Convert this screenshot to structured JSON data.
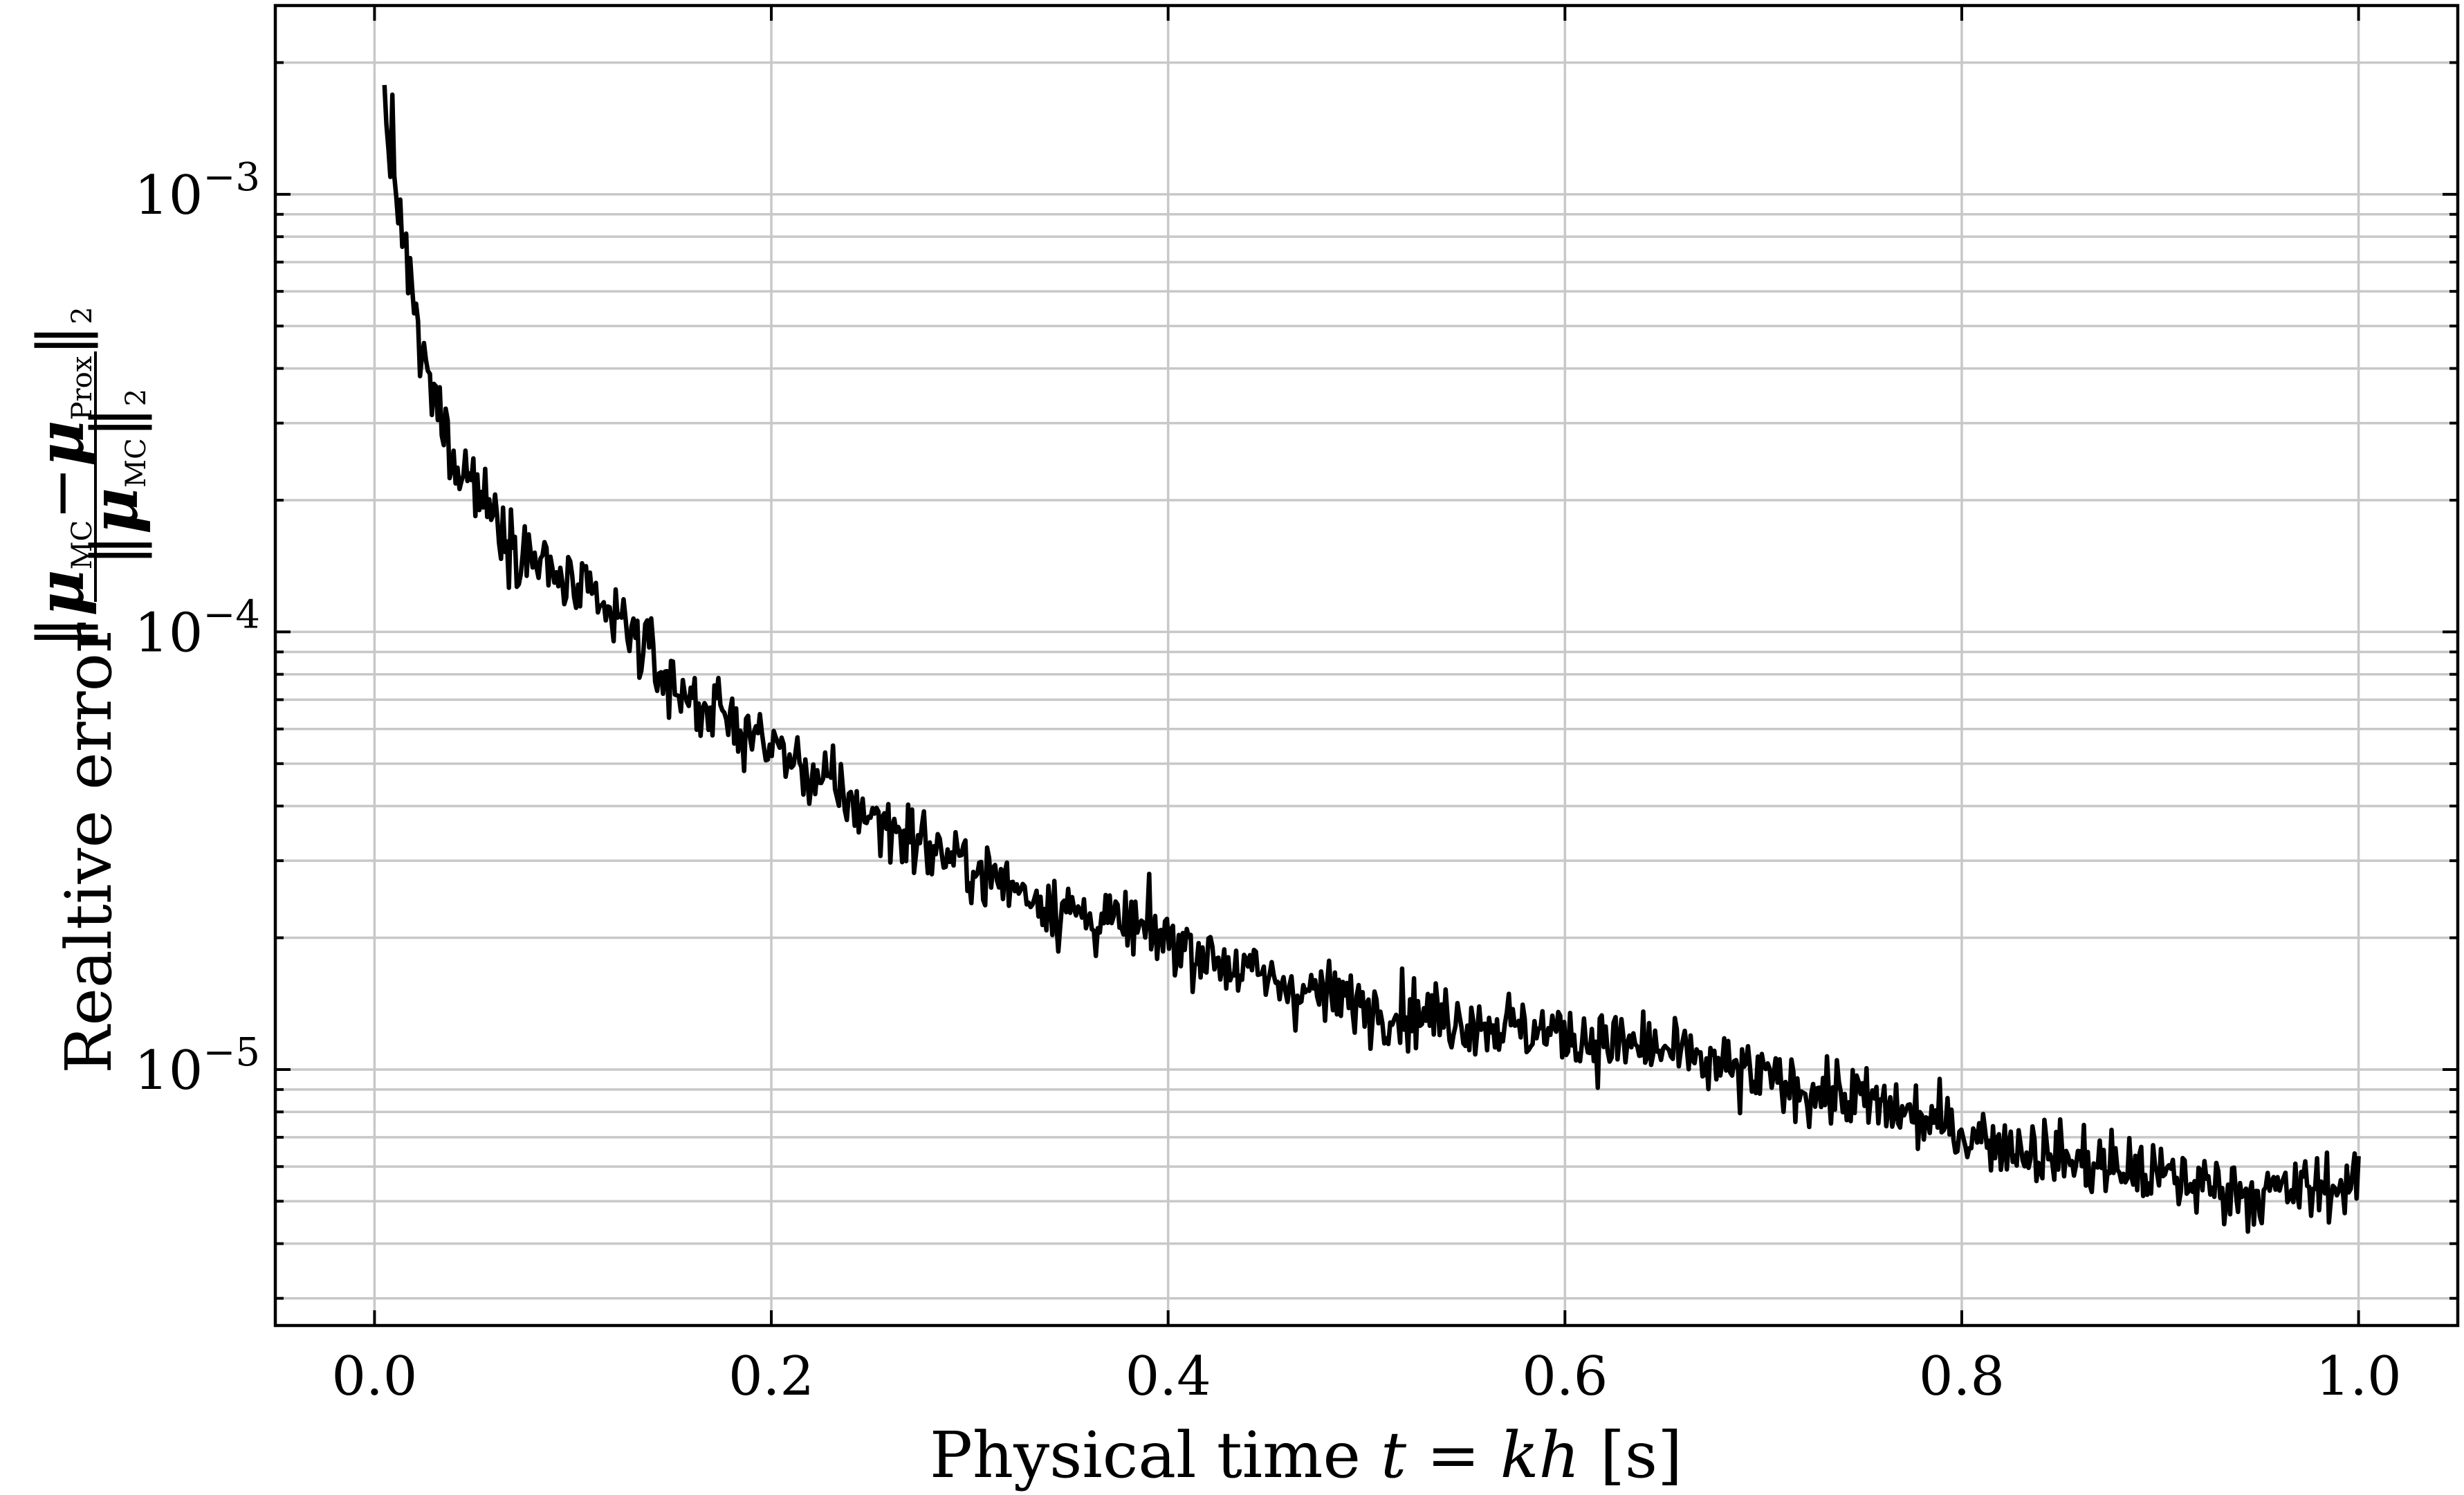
{
  "chart_data": {
    "type": "line",
    "xlabel": "Physical time t = kh [s]",
    "ylabel": "Realtive error ‖μ_MC − μ_Prox‖₂ / ‖μ_MC‖₂",
    "ylabel_parts": {
      "prefix": "Realtive error",
      "num_mu1": "μ",
      "num_sub1": "MC",
      "num_minus": "−",
      "num_mu2": "μ",
      "num_sub2": "Prox",
      "num_norm_sub": "2",
      "den_mu": "μ",
      "den_sub": "MC",
      "den_norm_sub": "2"
    },
    "xlabel_parts": {
      "text": "Physical time ",
      "t": "t",
      "eq": " = ",
      "kh": "kh",
      "unit": " [s]"
    },
    "xlim": [
      -0.05,
      1.05
    ],
    "ylim": [
      2.6e-06,
      0.0027
    ],
    "yscale": "log",
    "grid": true,
    "x_ticks": [
      0.0,
      0.2,
      0.4,
      0.6,
      0.8,
      1.0
    ],
    "x_tick_labels": [
      "0.0",
      "0.2",
      "0.4",
      "0.6",
      "0.8",
      "1.0"
    ],
    "y_major_ticks": [
      0.001,
      0.0001,
      1e-05
    ],
    "y_tick_labels": [
      {
        "base": "10",
        "exp": "−3"
      },
      {
        "base": "10",
        "exp": "−4"
      },
      {
        "base": "10",
        "exp": "−5"
      }
    ],
    "series": [
      {
        "color": "#000000",
        "t_start": 0.005,
        "t_end": 1.0,
        "trend_points": [
          [
            0.005,
            0.0016
          ],
          [
            0.01,
            0.0011
          ],
          [
            0.015,
            0.00075
          ],
          [
            0.02,
            0.00052
          ],
          [
            0.03,
            0.00033
          ],
          [
            0.04,
            0.00026
          ],
          [
            0.05,
            0.00022
          ],
          [
            0.07,
            0.00016
          ],
          [
            0.1,
            0.000125
          ],
          [
            0.13,
            0.0001
          ],
          [
            0.15,
            7.5e-05
          ],
          [
            0.2,
            5.5e-05
          ],
          [
            0.25,
            3.8e-05
          ],
          [
            0.3,
            2.9e-05
          ],
          [
            0.35,
            2.3e-05
          ],
          [
            0.4,
            2e-05
          ],
          [
            0.45,
            1.6e-05
          ],
          [
            0.5,
            1.4e-05
          ],
          [
            0.55,
            1.3e-05
          ],
          [
            0.6,
            1.2e-05
          ],
          [
            0.65,
            1.1e-05
          ],
          [
            0.7,
            9.5e-06
          ],
          [
            0.75,
            8.5e-06
          ],
          [
            0.8,
            7.2e-06
          ],
          [
            0.85,
            6.3e-06
          ],
          [
            0.9,
            5.7e-06
          ],
          [
            0.95,
            5.2e-06
          ],
          [
            1.0,
            5.5e-06
          ]
        ],
        "n_points": 1000,
        "noise_decades": 0.09
      }
    ]
  }
}
